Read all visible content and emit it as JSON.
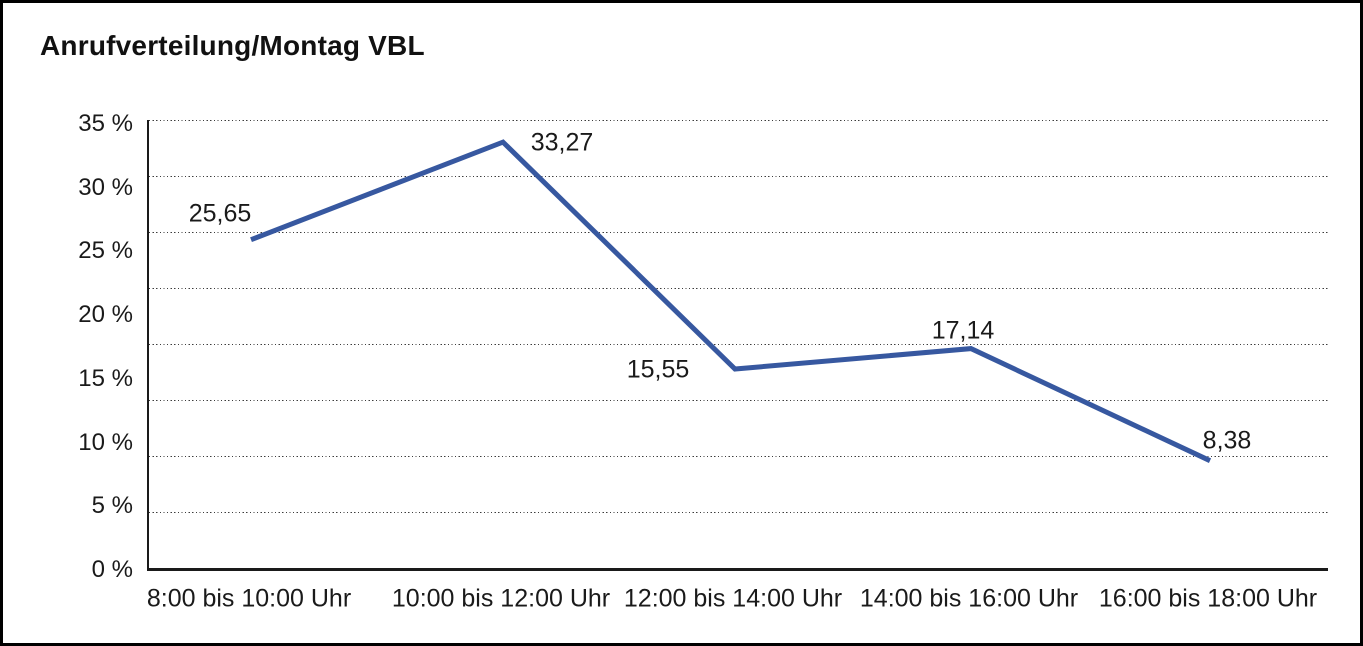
{
  "chart_data": {
    "type": "line",
    "title": "Anrufverteilung/Montag VBL",
    "categories": [
      "8:00 bis 10:00 Uhr",
      "10:00 bis 12:00 Uhr",
      "12:00 bis 14:00 Uhr",
      "14:00 bis 16:00 Uhr",
      "16:00 bis 18:00 Uhr"
    ],
    "values": [
      25.65,
      33.27,
      15.55,
      17.14,
      8.38
    ],
    "value_labels": [
      "25,65",
      "33,27",
      "15,55",
      "17,14",
      "8,38"
    ],
    "y_ticks": [
      "35 %",
      "30 %",
      "25 %",
      "20 %",
      "15 %",
      "10 %",
      "5 %",
      "0 %"
    ],
    "y_tick_values": [
      35,
      30,
      25,
      20,
      15,
      10,
      5,
      0
    ],
    "ylim": [
      0,
      35
    ],
    "xlabel": "",
    "ylabel": "",
    "grid": "horizontal-dotted",
    "legend": "none",
    "decimal_separator": ","
  },
  "colors": {
    "line": "#3758A0",
    "axis": "#1a1a1a",
    "grid": "#3c3c3c",
    "text": "#1a1a1a",
    "background": "#ffffff",
    "border": "#000000"
  }
}
